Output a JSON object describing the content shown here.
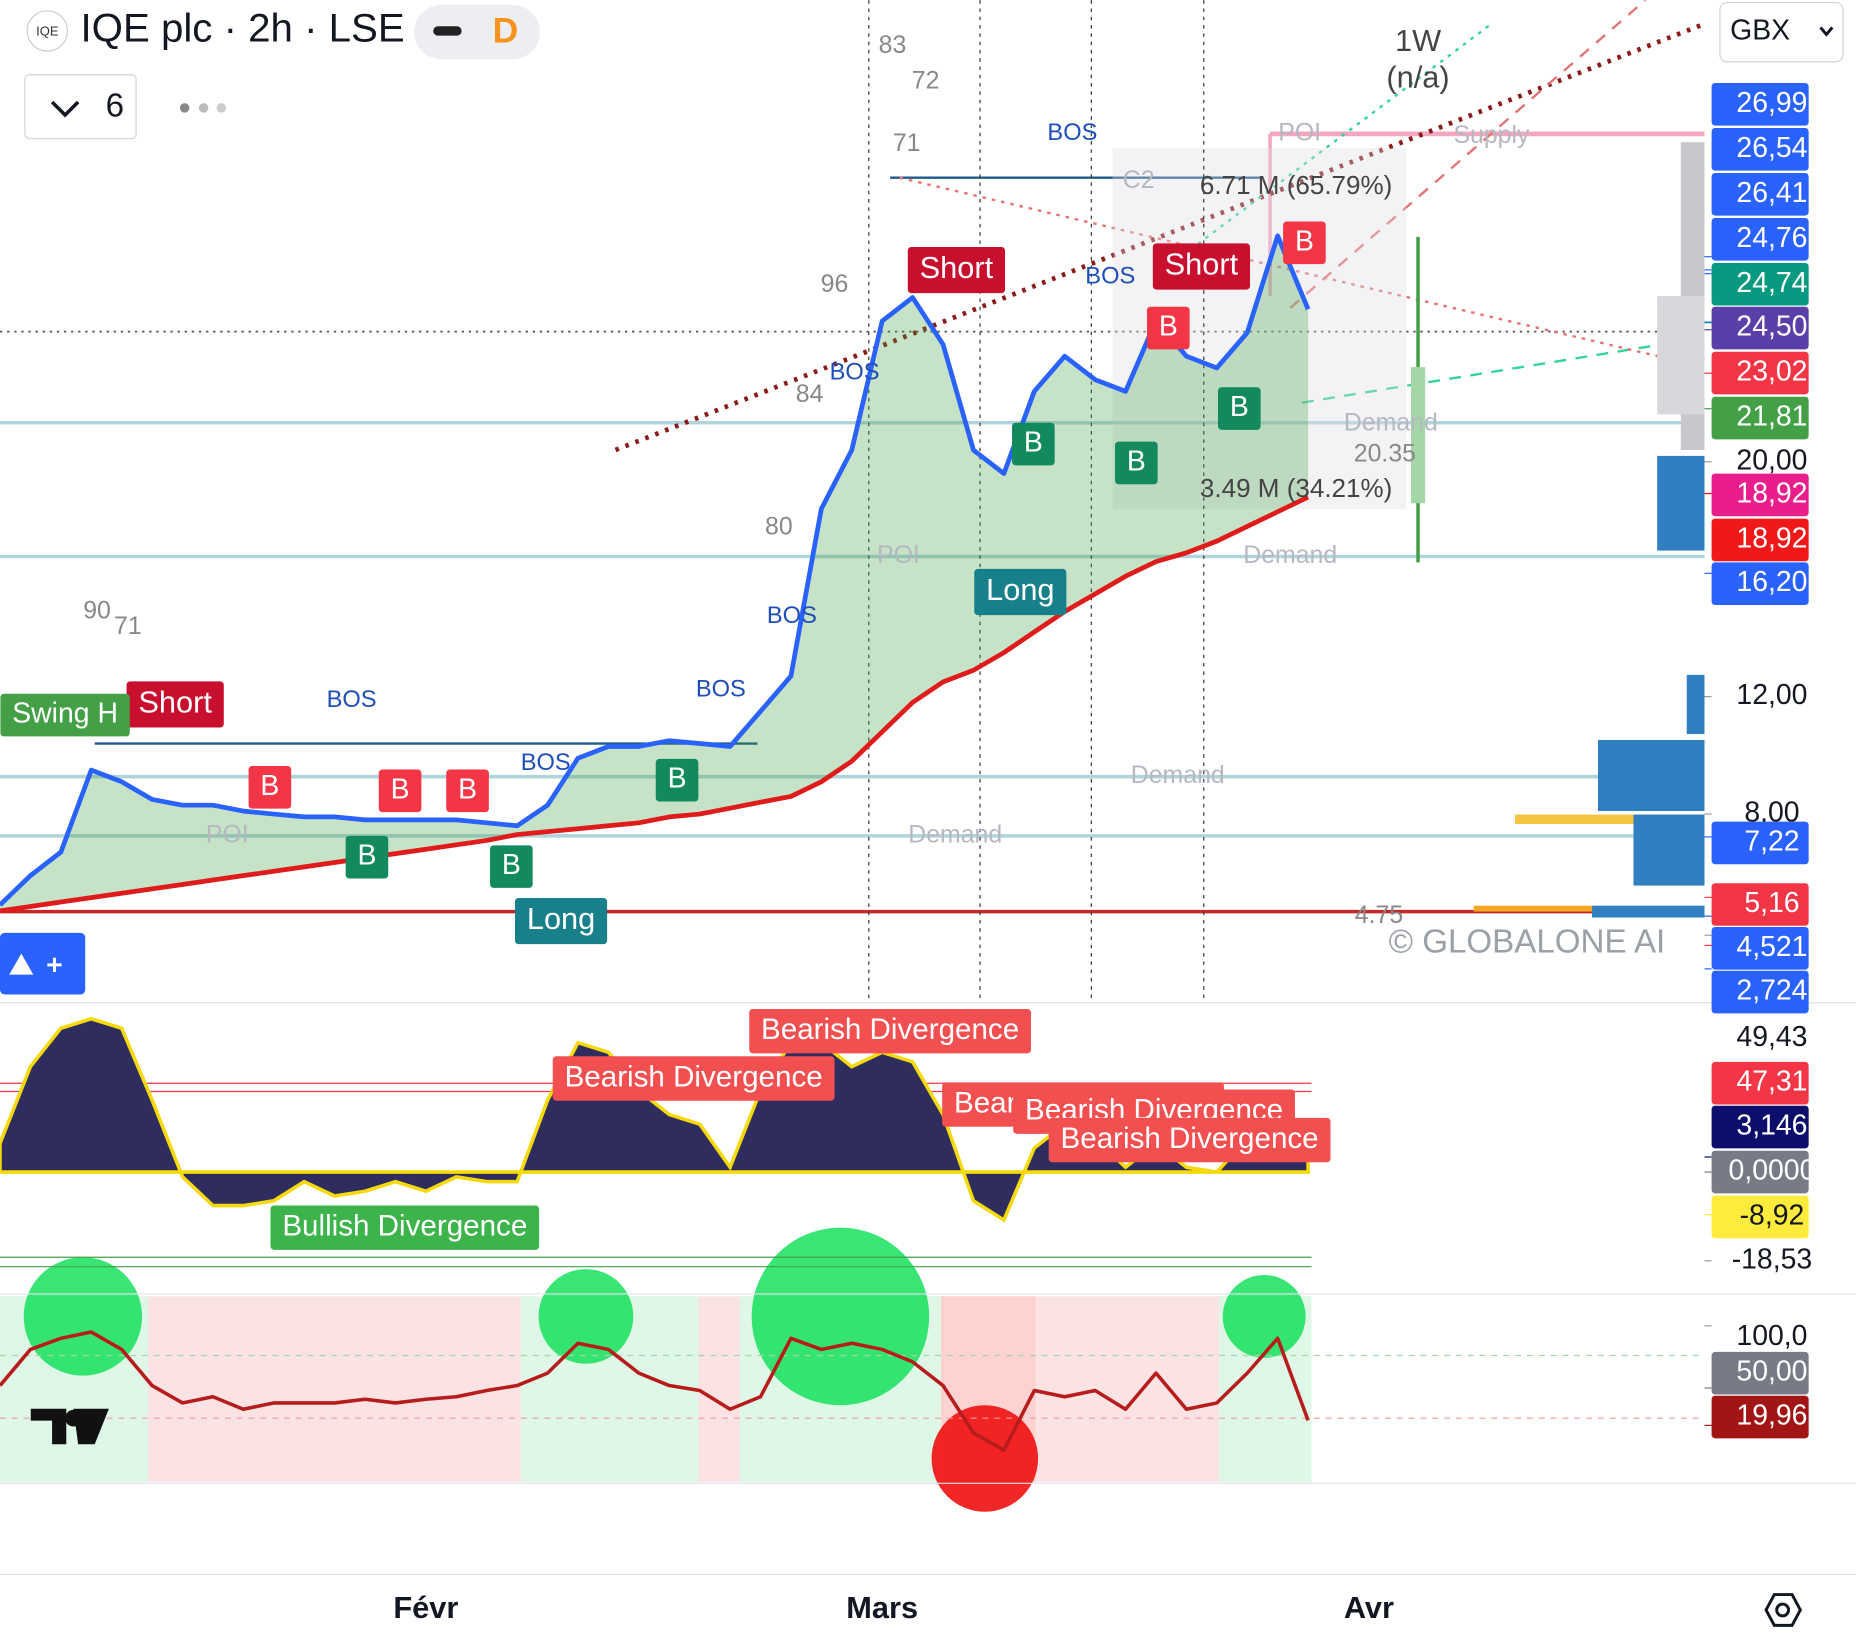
{
  "header": {
    "logo": "IQE",
    "symbol": "IQE plc · 2h · LSE",
    "badge": "D",
    "resolution_count": "6",
    "currency": "GBX"
  },
  "chart_data": [
    {
      "type": "line",
      "categories": [
        null,
        null,
        null,
        null,
        null,
        null,
        null,
        null,
        null,
        null,
        null,
        null,
        null,
        null,
        "Févr",
        null,
        null,
        null,
        null,
        null,
        null,
        null,
        null,
        null,
        null,
        null,
        null,
        null,
        null,
        "Mars",
        null,
        null,
        null,
        null,
        null,
        null,
        null,
        null,
        null,
        null,
        null,
        null,
        null,
        null,
        null,
        "Avr",
        null,
        null,
        null,
        null,
        null,
        null,
        null,
        null,
        null,
        null
      ],
      "series": [
        {
          "color": "#2962ff",
          "values": [
            4.9,
            5.9,
            6.7,
            9.5,
            9.1,
            8.5,
            8.3,
            8.3,
            8.1,
            8.0,
            7.9,
            7.9,
            7.8,
            7.8,
            7.8,
            7.8,
            7.7,
            7.6,
            8.3,
            9.9,
            10.3,
            10.3,
            10.5,
            10.4,
            10.3,
            11.5,
            12.7,
            18.4,
            20.4,
            24.8,
            25.6,
            24.0,
            20.4,
            19.6,
            22.4,
            23.6,
            22.8,
            22.4,
            24.8,
            23.6,
            23.2,
            24.4,
            27.7,
            25.2,
            null,
            null,
            null,
            null,
            null,
            null,
            null,
            null,
            null,
            null,
            null,
            null
          ]
        },
        {
          "color": "#e01b1b",
          "values": [
            4.7,
            4.85,
            5.0,
            5.15,
            5.3,
            5.45,
            5.6,
            5.75,
            5.9,
            6.05,
            6.2,
            6.35,
            6.5,
            6.65,
            6.8,
            6.95,
            7.1,
            7.3,
            7.4,
            7.5,
            7.6,
            7.7,
            7.9,
            8.0,
            8.2,
            8.4,
            8.6,
            9.1,
            9.8,
            10.8,
            11.8,
            12.5,
            12.9,
            13.5,
            14.2,
            14.9,
            15.5,
            16.1,
            16.6,
            16.9,
            17.3,
            17.8,
            18.3,
            18.8,
            null,
            null,
            null,
            null,
            null,
            null,
            null,
            null,
            null,
            null,
            null,
            null
          ]
        }
      ],
      "ylim": [
        1.65,
        35.73
      ],
      "yticks": [
        {
          "value": 20,
          "label": "20,00"
        },
        {
          "value": 12,
          "label": "12,00"
        },
        {
          "value": 8,
          "label": "8,00"
        }
      ],
      "price_labels": [
        {
          "value": 26.99,
          "label": "26,99",
          "color": "#2962ff"
        },
        {
          "value": 26.54,
          "label": "26,54",
          "color": "#2962ff"
        },
        {
          "value": 26.41,
          "label": "26,41",
          "color": "#2962ff"
        },
        {
          "value": 24.76,
          "label": "24,76",
          "color": "#2962ff"
        },
        {
          "value": 24.74,
          "label": "24,74",
          "color": "#089981"
        },
        {
          "value": 24.5,
          "label": "24,50",
          "color": "#5b3fa8"
        },
        {
          "value": 23.02,
          "label": "23,02",
          "color": "#f23645"
        },
        {
          "value": 21.81,
          "label": "21,81",
          "color": "#43a047"
        },
        {
          "value": 18.92,
          "label": "18,92",
          "color": "#e91e8c"
        },
        {
          "value": 18.92,
          "label": "18,92",
          "color": "#f01818"
        },
        {
          "value": 16.2,
          "label": "16,20",
          "color": "#2962ff"
        },
        {
          "value": 7.22,
          "label": "7,22",
          "color": "#2962ff"
        },
        {
          "value": 5.16,
          "label": "5,16",
          "color": "#f23645"
        },
        {
          "value": 4.521,
          "label": "4,521",
          "color": "#2962ff"
        },
        {
          "value": 2.724,
          "label": "2,724",
          "color": "#2962ff"
        }
      ],
      "annotations": [
        "Short",
        "Short",
        "Short",
        "Long",
        "Long",
        "Swing H",
        "B",
        "B",
        "B",
        "B",
        "B",
        "B",
        "B",
        "B",
        "B",
        "B",
        "B",
        "BOS",
        "BOS",
        "BOS",
        "BOS",
        "BOS",
        "BOS",
        "BOS",
        "Demand",
        "Demand",
        "Demand",
        "Demand",
        "POI",
        "POI",
        "POI",
        "Supply",
        "1W",
        "(n/a)",
        "6.71 M (65.79%)",
        "3.49 M (34.21%)",
        "20.35",
        "4.75",
        "© GLOBALONE AI",
        "83",
        "72",
        "71",
        "90",
        "71",
        "84",
        "80",
        "C2",
        "96"
      ]
    },
    {
      "type": "area",
      "series": [
        {
          "color": "#2f2c5e",
          "values": [
            6,
            22,
            30,
            32,
            30,
            15,
            -1,
            -7,
            -7,
            -6,
            -2,
            -5,
            -4,
            -2,
            -4,
            -1,
            -2,
            -2,
            15,
            27,
            25,
            17,
            12,
            10,
            1,
            17,
            27,
            27,
            22,
            25,
            23,
            12,
            -6,
            -10,
            5,
            10,
            7,
            1,
            6,
            1,
            0,
            7,
            12,
            5,
            null,
            null,
            null,
            null,
            null,
            null,
            null,
            null,
            null,
            null,
            null,
            null
          ]
        }
      ],
      "ylim": [
        -24.7,
        34.6
      ],
      "price_labels": [
        {
          "value": 49.43,
          "label": "49,43"
        },
        {
          "value": 47.31,
          "label": "47,31",
          "color": "#f23645"
        },
        {
          "value": 3.146,
          "label": "3,146",
          "color": "#0d0d6b"
        },
        {
          "value": 0,
          "label": "0,0000",
          "color": "#787b86"
        },
        {
          "value": -8.92,
          "label": "-8,92",
          "color": "#ffeb3b"
        },
        {
          "value": -18.53,
          "label": "-18,53"
        }
      ],
      "annotations": [
        "Bearish Divergence",
        "Bearish Divergence",
        "Bearish Divergence",
        "Bearish Divergence",
        "Bearish Divergence",
        "Bullish Divergence"
      ]
    },
    {
      "type": "line",
      "series": [
        {
          "color": "#b71c1c",
          "values": [
            52,
            81,
            90,
            95,
            81,
            52,
            38,
            43,
            33,
            38,
            38,
            38,
            41,
            38,
            41,
            43,
            48,
            52,
            62,
            86,
            81,
            62,
            52,
            48,
            33,
            43,
            90,
            81,
            86,
            81,
            71,
            52,
            14,
            0,
            48,
            43,
            48,
            33,
            62,
            33,
            38,
            62,
            90,
            24,
            null,
            null,
            null,
            null,
            null,
            null,
            null,
            null,
            null,
            null,
            null,
            null
          ]
        }
      ],
      "ylim": [
        -23.8,
        123.8
      ],
      "price_labels": [
        {
          "value": 100,
          "label": "100,0"
        },
        {
          "value": 50,
          "label": "50,00",
          "color": "#787b86"
        },
        {
          "value": 19.96,
          "label": "19,96",
          "color": "#a31515"
        }
      ]
    }
  ]
}
